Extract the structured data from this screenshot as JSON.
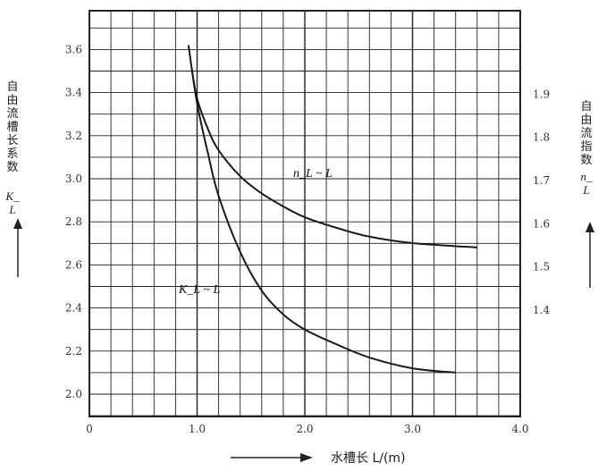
{
  "chart_data": {
    "type": "line",
    "xlabel": "水槽长 L/(m)",
    "ylabel_left": "自由流槽长系数 K_L",
    "ylabel_right": "自由流指数 n_L",
    "xlim": [
      0,
      4.0
    ],
    "ylim_left": [
      1.9,
      3.75
    ],
    "ylim_right": [
      1.3,
      2.0
    ],
    "x_ticks": [
      "0",
      "1.0",
      "2.0",
      "3.0",
      "4.0"
    ],
    "y_left_ticks": [
      "2.0",
      "2.2",
      "2.4",
      "2.6",
      "2.8",
      "3.0",
      "3.2",
      "3.4",
      "3.6"
    ],
    "y_right_ticks": [
      "1.4",
      "1.5",
      "1.6",
      "1.7",
      "1.8",
      "1.9"
    ],
    "grid": true,
    "series": [
      {
        "name": "K_L ~ L",
        "axis": "left",
        "x": [
          0.92,
          1.0,
          1.1,
          1.2,
          1.4,
          1.6,
          1.8,
          2.0,
          2.3,
          2.6,
          3.0,
          3.4
        ],
        "y": [
          3.62,
          3.35,
          3.12,
          2.92,
          2.66,
          2.48,
          2.37,
          2.3,
          2.23,
          2.17,
          2.12,
          2.1
        ]
      },
      {
        "name": "n_L ~ L",
        "axis": "right",
        "x": [
          0.95,
          1.0,
          1.1,
          1.2,
          1.4,
          1.6,
          1.8,
          2.0,
          2.3,
          2.6,
          3.0,
          3.6
        ],
        "y": [
          1.96,
          1.89,
          1.82,
          1.77,
          1.71,
          1.67,
          1.64,
          1.615,
          1.59,
          1.57,
          1.555,
          1.545
        ]
      }
    ],
    "curve_labels": [
      "K_L ~ L",
      "n_L ~ L"
    ]
  },
  "texts": {
    "left_axis_title": "自由流槽长系数",
    "left_axis_symbol": "K_L",
    "right_axis_title": "自由流指数",
    "right_axis_symbol": "n_L",
    "x_axis_title": "水槽长 L/(m)"
  }
}
